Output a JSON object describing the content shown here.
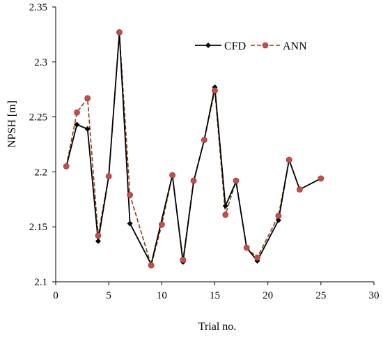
{
  "chart_data": {
    "type": "line",
    "title": "",
    "xlabel": "Trial no.",
    "ylabel": "NPSH [m]",
    "xlim": [
      0,
      30
    ],
    "ylim": [
      2.1,
      2.35
    ],
    "xticks": [
      0,
      5,
      10,
      15,
      20,
      25,
      30
    ],
    "xtick_labels": [
      "0",
      "5",
      "10",
      "15",
      "20",
      "25",
      "30"
    ],
    "yticks": [
      2.1,
      2.15,
      2.2,
      2.25,
      2.3,
      2.35
    ],
    "ytick_labels": [
      "2.1",
      "2.15",
      "2.2",
      "2.25",
      "2.3",
      "2.35"
    ],
    "grid": false,
    "legend_position": "top-right",
    "series": [
      {
        "name": "CFD",
        "color": "#000000",
        "line_style": "solid",
        "marker": "diamond",
        "x": [
          1,
          2,
          3,
          4,
          5,
          6,
          7,
          9,
          11,
          12,
          13,
          14,
          15,
          16,
          17,
          18,
          19,
          21,
          22,
          23,
          25
        ],
        "y": [
          2.205,
          2.243,
          2.239,
          2.137,
          2.196,
          2.326,
          2.153,
          2.116,
          2.197,
          2.118,
          2.191,
          2.229,
          2.277,
          2.169,
          2.191,
          2.131,
          2.119,
          2.156,
          2.211,
          2.184,
          2.194
        ]
      },
      {
        "name": "ANN",
        "color": "#c0504d",
        "line_color": "#8b3a0e",
        "line_style": "dashed",
        "marker": "circle",
        "x": [
          1,
          2,
          3,
          4,
          5,
          6,
          7,
          9,
          10,
          11,
          12,
          13,
          14,
          15,
          16,
          17,
          18,
          19,
          21,
          22,
          23,
          25
        ],
        "y": [
          2.205,
          2.254,
          2.267,
          2.142,
          2.196,
          2.327,
          2.179,
          2.115,
          2.152,
          2.197,
          2.12,
          2.192,
          2.229,
          2.274,
          2.161,
          2.192,
          2.131,
          2.122,
          2.16,
          2.211,
          2.184,
          2.194
        ]
      }
    ]
  }
}
